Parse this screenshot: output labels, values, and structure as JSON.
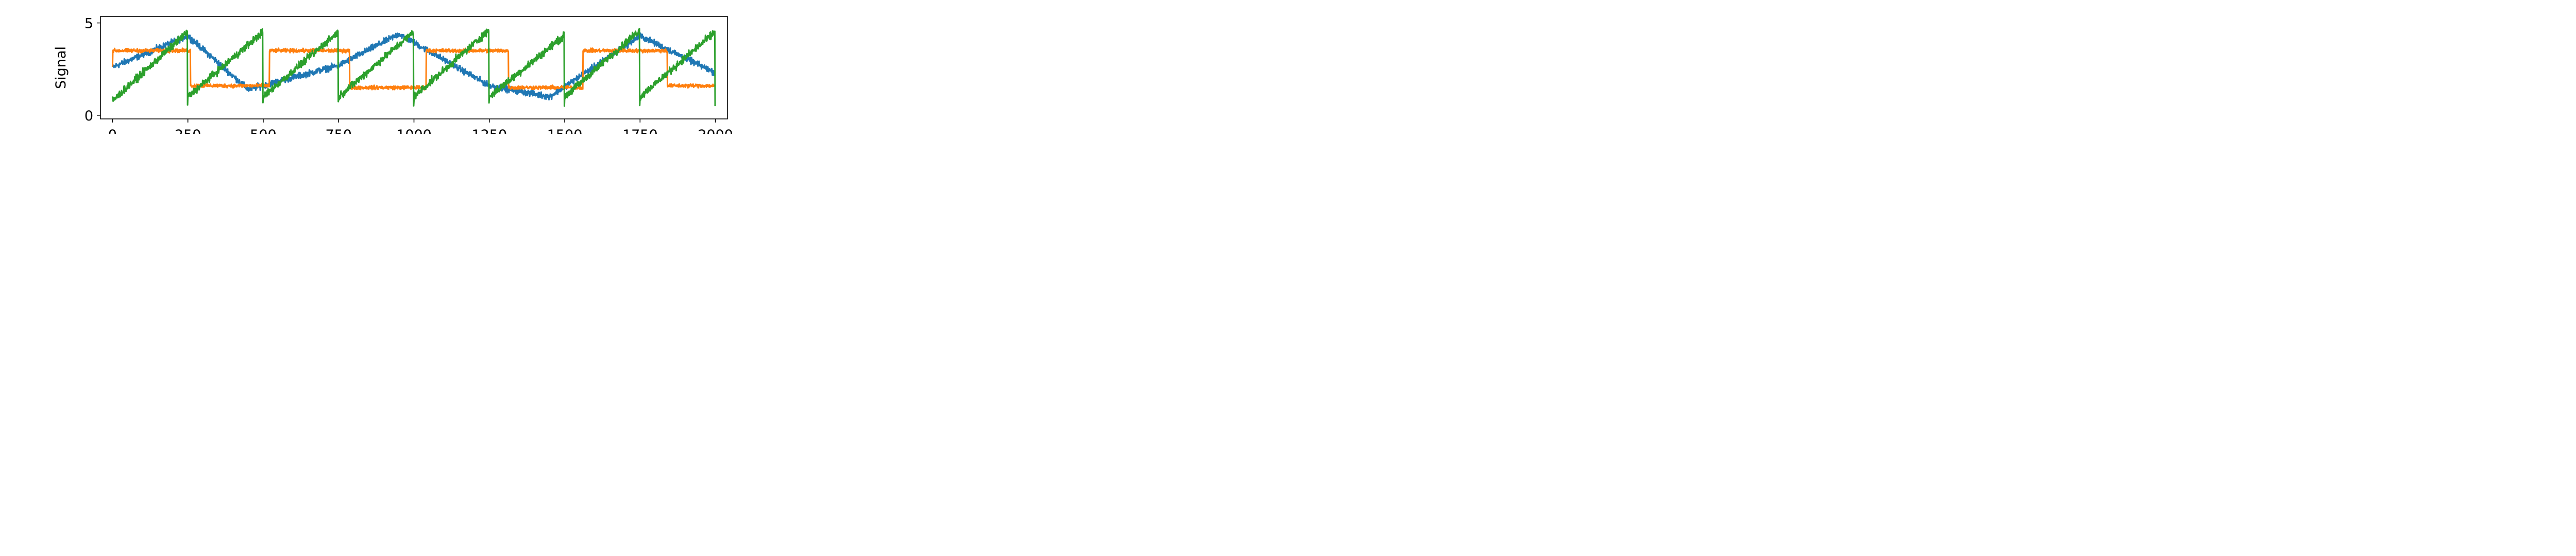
{
  "chart_data": {
    "type": "line",
    "title": "",
    "xlabel": "",
    "ylabel": "Signal",
    "xlim": [
      -40,
      2040
    ],
    "ylim": [
      -0.2,
      5.35
    ],
    "xticks": [
      0,
      250,
      500,
      750,
      1000,
      1250,
      1500,
      1750,
      2000
    ],
    "xtick_labels": [
      "0",
      "250",
      "500",
      "750",
      "1000",
      "1250",
      "1500",
      "1750",
      "2000"
    ],
    "yticks": [
      0,
      5
    ],
    "ytick_labels": [
      "0",
      "5"
    ],
    "grid": false,
    "legend": false,
    "n_points": 2000,
    "series": [
      {
        "color": "#1f77b4",
        "noise_amplitude": 0.25,
        "x": [
          0,
          250,
          450,
          750,
          950,
          1250,
          1450,
          1750,
          1999
        ],
        "y": [
          2.6,
          4.3,
          1.4,
          2.7,
          4.4,
          1.6,
          1.0,
          4.3,
          2.3
        ]
      },
      {
        "color": "#ff7f0e",
        "noise_amplitude": 0.15,
        "x": [
          0,
          1,
          258,
          259,
          520,
          521,
          786,
          787,
          1040,
          1041,
          1313,
          1314,
          1560,
          1561,
          1840,
          1841,
          1999
        ],
        "y": [
          2.6,
          3.5,
          3.5,
          1.6,
          1.6,
          3.5,
          3.5,
          1.5,
          1.5,
          3.5,
          3.5,
          1.5,
          1.5,
          3.5,
          3.5,
          1.6,
          1.6
        ]
      },
      {
        "color": "#2ca02c",
        "noise_amplitude": 0.3,
        "x": [
          0,
          1,
          248,
          249,
          250,
          498,
          499,
          500,
          748,
          749,
          750,
          998,
          999,
          1000,
          1248,
          1249,
          1250,
          1498,
          1499,
          1500,
          1748,
          1749,
          1750,
          1998,
          1999
        ],
        "y": [
          0.8,
          0.8,
          4.5,
          0.6,
          1.0,
          4.5,
          0.6,
          1.0,
          4.5,
          0.6,
          1.0,
          4.5,
          0.6,
          1.0,
          4.6,
          0.6,
          1.0,
          4.3,
          0.6,
          1.0,
          4.6,
          0.6,
          1.0,
          4.5,
          0.5
        ]
      }
    ]
  }
}
